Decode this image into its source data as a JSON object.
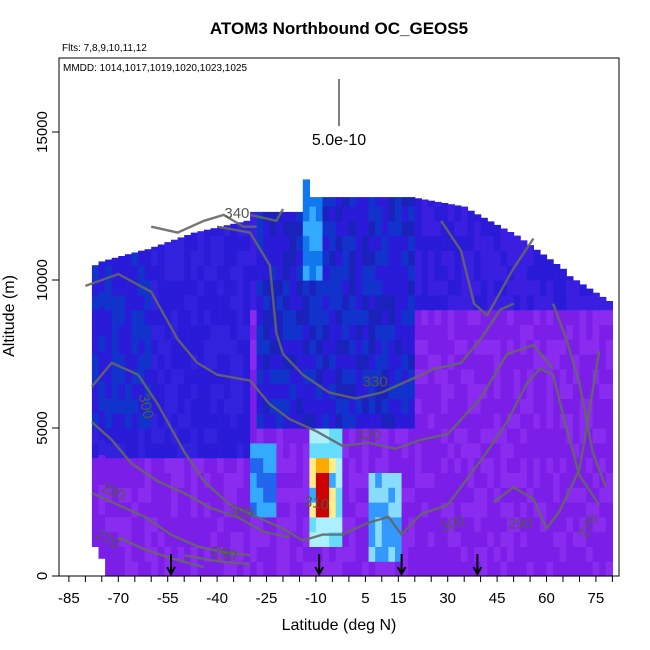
{
  "chart_data": {
    "type": "heatmap",
    "title": "ATOM3 Northbound OC_GEOS5",
    "flights_label": "Flts: 7,8,9,10,11,12",
    "dates_label": "MMDD: 1014,1017,1019,1020,1023,1025",
    "xlabel": "Latitude (deg N)",
    "ylabel": "Altitude (m)",
    "xlim": [
      -88,
      82
    ],
    "ylim": [
      0,
      17500
    ],
    "xticks": [
      -85,
      -70,
      -55,
      -40,
      -25,
      -10,
      5,
      15,
      30,
      45,
      60,
      75
    ],
    "yticks": [
      0,
      5000,
      10000,
      15000
    ],
    "scale_label": "5.0e-10",
    "colors": {
      "background_low": "#7b1fe8",
      "mid_low": "#2a1bd8",
      "mid": "#1133cc",
      "light": "#33aaff",
      "high": "#ff3300",
      "peak": "#cc0000",
      "contour": "#666666"
    },
    "contours": [
      {
        "label": "340"
      },
      {
        "label": "330"
      },
      {
        "label": "320"
      },
      {
        "label": "310"
      },
      {
        "label": "300"
      },
      {
        "label": "300"
      },
      {
        "label": "300"
      },
      {
        "label": "290"
      },
      {
        "label": "280"
      },
      {
        "label": "270"
      },
      {
        "label": "290"
      },
      {
        "label": "270"
      }
    ],
    "arrows_lat": [
      -54,
      -9,
      16,
      39
    ]
  }
}
